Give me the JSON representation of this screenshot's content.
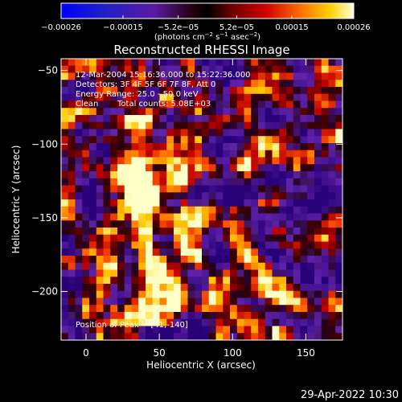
{
  "chart_data": {
    "type": "heatmap",
    "title": "Reconstructed RHESSI Image",
    "xlabel": "Heliocentric X (arcsec)",
    "ylabel": "Heliocentric Y (arcsec)",
    "xlim": [
      -17,
      175
    ],
    "ylim": [
      -233,
      -42
    ],
    "x_ticks": [
      0,
      50,
      100,
      150
    ],
    "x_tick_labels": [
      "0",
      "50",
      "100",
      "150"
    ],
    "y_ticks": [
      -50,
      -100,
      -150,
      -200
    ],
    "y_tick_labels": [
      "−50",
      "−100",
      "−150",
      "−200"
    ],
    "colorbar": {
      "range": [
        -0.00026,
        0.00026
      ],
      "ticks": [
        -0.00026,
        -0.00015,
        -5.2e-05,
        5.2e-05,
        0.00015,
        0.00026
      ],
      "tick_labels": [
        "−0.00026",
        "−0.00015",
        "−5.2e−05",
        "5.2e−05",
        "0.00015",
        "0.00026"
      ],
      "units_main": "(photons cm",
      "units_exp1": "−2",
      "units_mid": " s",
      "units_exp2": "−1",
      "units_mid2": " asec",
      "units_exp3": "−2",
      "units_end": ")"
    },
    "annotations": {
      "time_range": "12-Mar-2004 15:16:36.000 to 15:22:36.000",
      "detectors": "Detectors: 3F 4F 5F 6F 7F 8F, Att 0",
      "energy_range": "Energy Range: 25.0 - 50.0 keV",
      "clean": "Clean",
      "total_counts": "Total counts: 5.08E+03",
      "peak": "Position of Peak = [41,-140]"
    },
    "peak": [
      41,
      -140
    ]
  },
  "footer": {
    "timestamp": "29-Apr-2022 10:30"
  }
}
